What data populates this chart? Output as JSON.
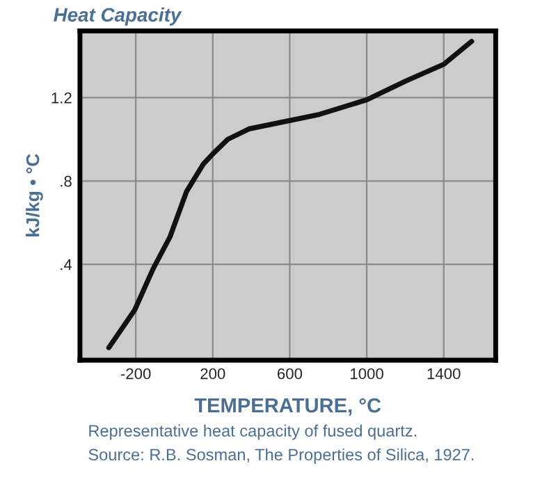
{
  "chart_data": {
    "type": "line",
    "title": "Heat Capacity",
    "xlabel": "TEMPERATURE, °C",
    "ylabel": "kJ/kg • °C",
    "annotations": [
      "Representative heat capacity of fused quartz.",
      "Source: R.B. Sosman, The Properties of Silica, 1927."
    ],
    "x": [
      -340,
      -206,
      -109,
      -23,
      64,
      150,
      200,
      278,
      388,
      600,
      755,
      1000,
      1203,
      1400,
      1545
    ],
    "series": [
      {
        "color": "#111111",
        "values": [
          0.0,
          0.18,
          0.38,
          0.53,
          0.75,
          0.88,
          0.93,
          1.0,
          1.05,
          1.09,
          1.12,
          1.19,
          1.28,
          1.36,
          1.47
        ]
      }
    ],
    "xlim": [
      -490,
      1670
    ],
    "ylim": [
      -0.06,
      1.52
    ],
    "xticks": [
      -200,
      200,
      600,
      1000,
      1400
    ],
    "yticks": [
      {
        "value": 0.4,
        "label": ".4"
      },
      {
        "value": 0.8,
        "label": ".8"
      },
      1.2
    ],
    "grid": true,
    "legend": false,
    "marker": "none",
    "line_style": "solid"
  }
}
